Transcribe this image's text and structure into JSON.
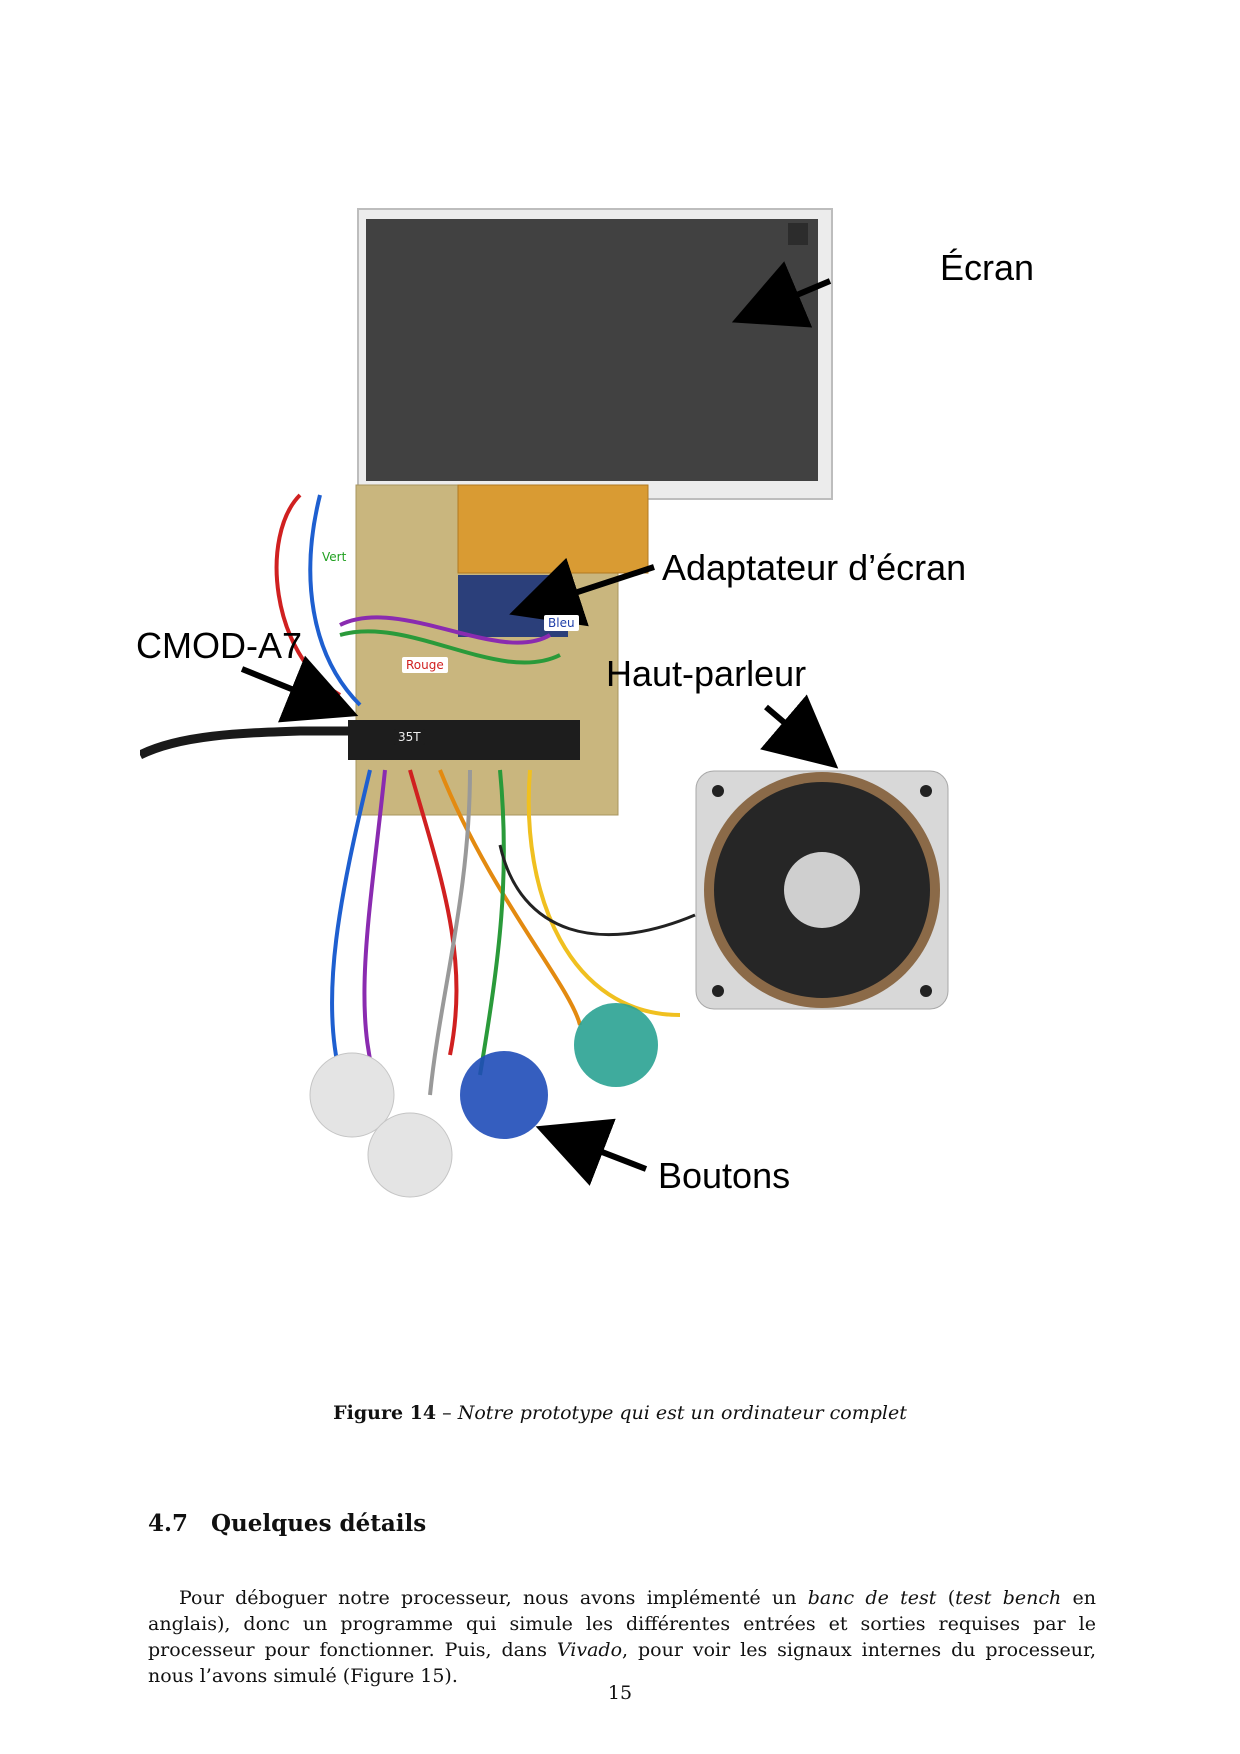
{
  "figure": {
    "labels": {
      "screen": "Écran",
      "screen_adapter": "Adaptateur d’écran",
      "cmod": "CMOD-A7",
      "speaker": "Haut-parleur",
      "buttons": "Boutons"
    },
    "board_labels": {
      "green": "Vert",
      "red": "Rouge",
      "blue": "Bleu",
      "chip": "35T"
    },
    "caption_number": "Figure 14",
    "caption_separator": " – ",
    "caption_text": "Notre prototype qui est un ordinateur complet"
  },
  "section": {
    "number": "4.7",
    "title": "Quelques détails"
  },
  "paragraph": {
    "p1": "Pour déboguer notre processeur, nous avons implémenté un ",
    "e1": "banc de test",
    "p2": " (",
    "e2": "test bench",
    "p3": " en anglais), donc un programme qui simule les différentes entrées et sorties requises par le processeur pour fonctionner. Puis, dans ",
    "e3": "Vivado",
    "p4": ", pour voir les signaux internes du processeur, nous l’avons simulé (Figure 15)."
  },
  "page_number": "15"
}
